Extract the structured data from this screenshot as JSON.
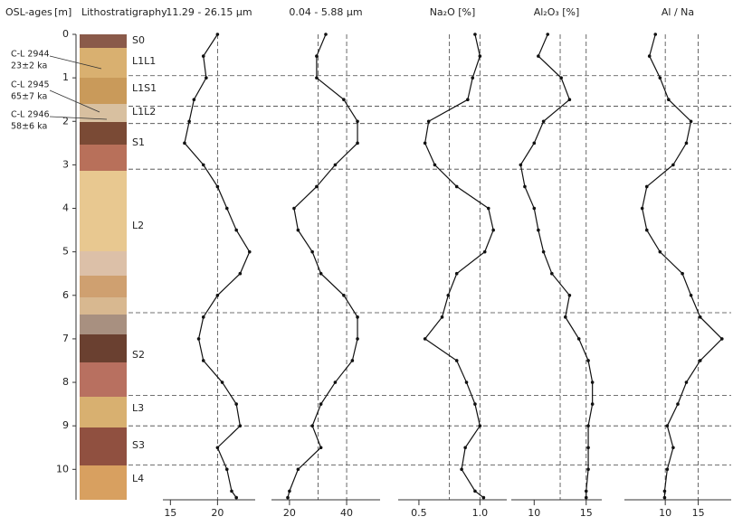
{
  "depth_axis": {
    "header": "OSL-ages",
    "label": "[m]",
    "ylim": [
      0,
      10.7
    ],
    "yticks": [
      0,
      1,
      2,
      3,
      4,
      5,
      6,
      7,
      8,
      9,
      10
    ]
  },
  "lithostratigraphy": {
    "title": "Lithostratigraphy",
    "units": [
      "S0",
      "L1L1",
      "L1S1",
      "L1L2",
      "S1",
      "L2",
      "S2",
      "L3",
      "S3",
      "L4"
    ],
    "osl_samples": [
      {
        "id": "C-L 2944",
        "age": "23±2 ka"
      },
      {
        "id": "C-L 2945",
        "age": "65±7 ka"
      },
      {
        "id": "C-L 2946",
        "age": "58±6 ka"
      }
    ]
  },
  "boundaries": [
    0.95,
    1.65,
    2.05,
    3.1,
    6.4,
    8.3,
    9.0,
    9.9
  ],
  "depth": [
    0,
    0.5,
    1,
    1.5,
    2,
    2.5,
    3,
    3.5,
    4,
    4.5,
    5,
    5.5,
    6,
    6.5,
    7,
    7.5,
    8,
    8.5,
    9,
    9.5,
    10,
    10.5,
    10.65
  ],
  "chart_data": [
    {
      "type": "profile",
      "title": "11.29 - 26.15 µm",
      "color": "#111111",
      "values": [
        20,
        18.5,
        18.8,
        17.5,
        17,
        16.5,
        18.5,
        20,
        21,
        22,
        23.4,
        22.4,
        20,
        18.5,
        18,
        18.5,
        20.5,
        22,
        22.4,
        20,
        21,
        21.5,
        22
      ],
      "xlim": [
        14.2,
        24.0
      ],
      "xticks": [
        15,
        20
      ],
      "grid_x": [
        20
      ]
    },
    {
      "type": "profile",
      "title": "0.04 - 5.88 µm",
      "color": "#111111",
      "values": [
        32.7,
        29.5,
        29.5,
        39,
        43.8,
        43.8,
        36,
        29.5,
        21.6,
        23,
        28,
        31,
        39,
        43.8,
        43.8,
        42,
        36,
        31,
        28,
        31,
        23,
        20,
        19.4
      ],
      "xlim": [
        13.7,
        51.7
      ],
      "xticks": [
        20,
        40
      ],
      "grid_x": [
        30,
        40
      ]
    },
    {
      "type": "profile",
      "title": "Na₂O [%]",
      "color": "#111111",
      "values": [
        0.96,
        1.0,
        0.94,
        0.9,
        0.58,
        0.55,
        0.63,
        0.81,
        1.07,
        1.11,
        1.04,
        0.81,
        0.74,
        0.69,
        0.55,
        0.81,
        0.89,
        0.96,
        1.0,
        0.88,
        0.85,
        0.96,
        1.03
      ],
      "xlim": [
        0.33,
        1.22
      ],
      "xticks": [
        0.5,
        {
          "value": 1,
          "label": "1.0"
        }
      ],
      "grid_x": [
        0.75,
        1
      ]
    },
    {
      "type": "profile",
      "title": "Al₂O₃ [%]",
      "color": "#111111",
      "values": [
        11.3,
        10.4,
        12.6,
        13.4,
        10.9,
        10,
        8.7,
        9.1,
        10,
        10.4,
        10.9,
        11.7,
        13.4,
        13,
        14.3,
        15.2,
        15.6,
        15.6,
        15.2,
        15.2,
        15.2,
        15,
        15
      ],
      "xlim": [
        7.8,
        16.5
      ],
      "xticks": [
        10,
        15
      ],
      "grid_x": [
        12.5,
        15
      ]
    },
    {
      "type": "profile",
      "title": "Al / Na",
      "color": "#111111",
      "values": [
        8.5,
        7.6,
        9.2,
        10.5,
        13.9,
        13.2,
        11.2,
        7.2,
        6.5,
        7.2,
        9.2,
        12.6,
        13.9,
        15.3,
        18.6,
        15.3,
        13.2,
        11.9,
        10.3,
        11.2,
        10.3,
        9.9,
        9.9
      ],
      "xlim": [
        3.8,
        20
      ],
      "xticks": [
        10,
        15
      ],
      "grid_x": [
        10,
        15
      ]
    }
  ]
}
